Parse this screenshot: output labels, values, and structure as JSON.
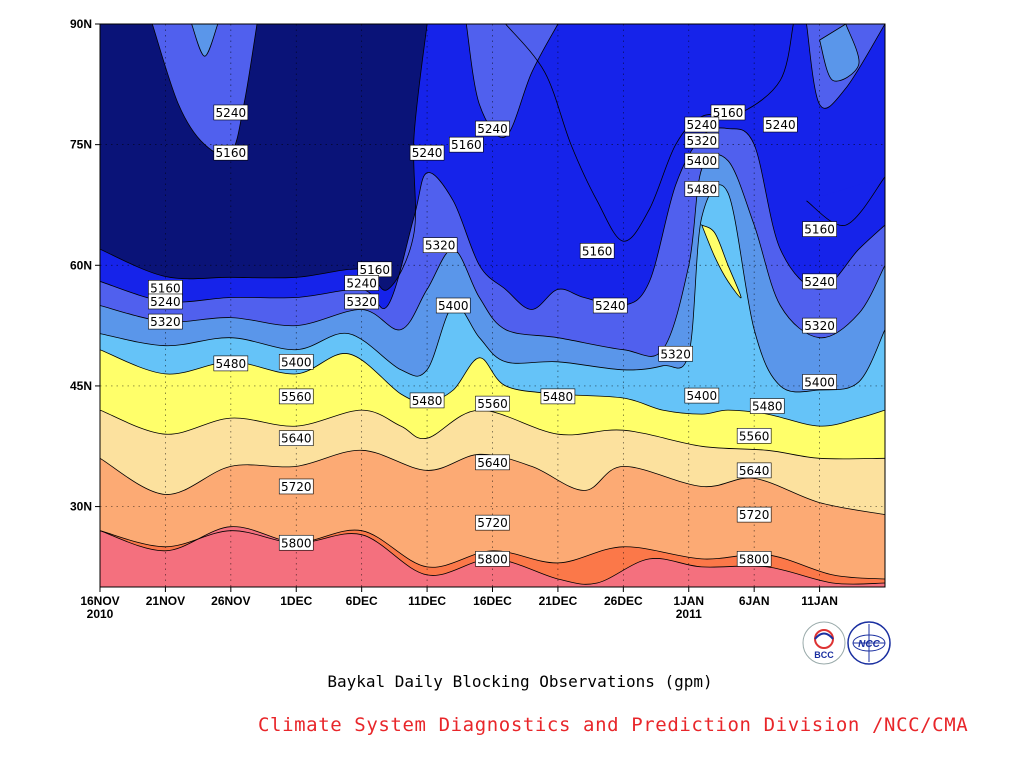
{
  "chart_data": {
    "type": "heatmap",
    "subtype": "filled-contour",
    "x_tick_labels": [
      {
        "day": "16NOV",
        "year": "2010"
      },
      {
        "day": "21NOV",
        "year": ""
      },
      {
        "day": "26NOV",
        "year": ""
      },
      {
        "day": "1DEC",
        "year": ""
      },
      {
        "day": "6DEC",
        "year": ""
      },
      {
        "day": "11DEC",
        "year": ""
      },
      {
        "day": "16DEC",
        "year": ""
      },
      {
        "day": "21DEC",
        "year": ""
      },
      {
        "day": "26DEC",
        "year": ""
      },
      {
        "day": "1JAN",
        "year": "2011"
      },
      {
        "day": "6JAN",
        "year": ""
      },
      {
        "day": "11JAN",
        "year": ""
      }
    ],
    "x_start": "2010-11-16",
    "x_end": "2011-01-15",
    "y_tick_labels": [
      "90N",
      "75N",
      "60N",
      "45N",
      "30N"
    ],
    "ylim": [
      20,
      90
    ],
    "grid": true,
    "contour_levels": [
      5160,
      5240,
      5320,
      5400,
      5480,
      5560,
      5640,
      5720,
      5800
    ],
    "fill_colors": [
      "#0a1378",
      "#1623ea",
      "#5060ee",
      "#5a96ea",
      "#65c3f8",
      "#ffff6a",
      "#fce19e",
      "#fcaa74",
      "#fb7849",
      "#f4707e"
    ],
    "contour_lines": [
      {
        "level": 5160,
        "points": [
          [
            "2010-11-16",
            62
          ],
          [
            "2010-11-21",
            58.6
          ],
          [
            "2010-11-26",
            58.5
          ],
          [
            "2010-12-01",
            58.5
          ],
          [
            "2010-12-06",
            59.5
          ],
          [
            "2010-12-08",
            57
          ],
          [
            "2010-12-10",
            64
          ],
          [
            "2010-12-10",
            76
          ],
          [
            "2010-12-11",
            90
          ]
        ]
      },
      {
        "level": 5160,
        "points": [
          [
            "2010-12-17",
            90
          ],
          [
            "2010-12-20",
            84
          ],
          [
            "2010-12-22",
            75
          ],
          [
            "2010-12-24",
            68
          ],
          [
            "2010-12-26",
            63
          ],
          [
            "2010-12-28",
            67
          ],
          [
            "2010-12-30",
            75
          ],
          [
            "2011-01-01",
            78.5
          ],
          [
            "2011-01-04",
            79
          ],
          [
            "2011-01-07",
            83
          ],
          [
            "2011-01-08",
            90
          ]
        ]
      },
      {
        "level": 5160,
        "points": [
          [
            "2011-01-09",
            68
          ],
          [
            "2011-01-12",
            65
          ],
          [
            "2011-01-15",
            71
          ]
        ]
      },
      {
        "level": 5240,
        "points": [
          [
            "2010-11-16",
            58
          ],
          [
            "2010-11-21",
            55.5
          ],
          [
            "2010-11-26",
            56
          ],
          [
            "2010-12-01",
            56
          ],
          [
            "2010-12-06",
            57
          ],
          [
            "2010-12-08",
            55
          ],
          [
            "2010-12-10",
            66
          ],
          [
            "2010-12-11",
            71.5
          ],
          [
            "2010-12-13",
            68
          ],
          [
            "2010-12-15",
            60
          ],
          [
            "2010-12-17",
            57
          ],
          [
            "2010-12-19",
            54.5
          ],
          [
            "2010-12-21",
            57
          ],
          [
            "2010-12-23",
            56
          ],
          [
            "2010-12-26",
            55
          ],
          [
            "2010-12-28",
            58
          ],
          [
            "2010-12-30",
            70
          ],
          [
            "2011-01-01",
            76
          ],
          [
            "2011-01-03",
            77
          ],
          [
            "2011-01-05",
            75
          ],
          [
            "2011-01-07",
            62
          ],
          [
            "2011-01-10",
            57
          ],
          [
            "2011-01-13",
            62
          ],
          [
            "2011-01-15",
            65
          ]
        ]
      },
      {
        "level": 5320,
        "points": [
          [
            "2010-11-16",
            55
          ],
          [
            "2010-11-21",
            53
          ],
          [
            "2010-11-26",
            53.5
          ],
          [
            "2010-12-01",
            52.5
          ],
          [
            "2010-12-06",
            54.5
          ],
          [
            "2010-12-09",
            52
          ],
          [
            "2010-12-11",
            57
          ],
          [
            "2010-12-13",
            62
          ],
          [
            "2010-12-15",
            56
          ],
          [
            "2010-12-17",
            52
          ],
          [
            "2010-12-21",
            51
          ],
          [
            "2010-12-26",
            49.5
          ],
          [
            "2010-12-29",
            49.5
          ],
          [
            "2010-12-31",
            60
          ],
          [
            "2011-01-01",
            72
          ],
          [
            "2011-01-03",
            73
          ],
          [
            "2011-01-05",
            65
          ],
          [
            "2011-01-07",
            55
          ],
          [
            "2011-01-10",
            51
          ],
          [
            "2011-01-13",
            54
          ],
          [
            "2011-01-15",
            60
          ]
        ]
      },
      {
        "level": 5400,
        "points": [
          [
            "2010-11-16",
            51.5
          ],
          [
            "2010-11-21",
            50
          ],
          [
            "2010-11-26",
            51
          ],
          [
            "2010-12-01",
            49.5
          ],
          [
            "2010-12-05",
            51.5
          ],
          [
            "2010-12-09",
            47
          ],
          [
            "2010-12-11",
            47
          ],
          [
            "2010-12-13",
            55
          ],
          [
            "2010-12-15",
            51
          ],
          [
            "2010-12-17",
            48
          ],
          [
            "2010-12-21",
            48
          ],
          [
            "2010-12-26",
            47
          ],
          [
            "2010-12-29",
            47.5
          ],
          [
            "2010-12-31",
            49
          ],
          [
            "2011-01-01",
            66
          ],
          [
            "2011-01-03",
            69
          ],
          [
            "2011-01-05",
            52
          ],
          [
            "2011-01-07",
            45
          ],
          [
            "2011-01-10",
            44.5
          ],
          [
            "2011-01-13",
            45.5
          ],
          [
            "2011-01-15",
            52
          ]
        ]
      },
      {
        "level": 5480,
        "points": [
          [
            "2010-11-16",
            49.5
          ],
          [
            "2010-11-21",
            46.5
          ],
          [
            "2010-11-26",
            48
          ],
          [
            "2010-12-01",
            46.5
          ],
          [
            "2010-12-05",
            49
          ],
          [
            "2010-12-09",
            44
          ],
          [
            "2010-12-11",
            43
          ],
          [
            "2010-12-13",
            44.5
          ],
          [
            "2010-12-15",
            48.5
          ],
          [
            "2010-12-17",
            45
          ],
          [
            "2010-12-21",
            44
          ],
          [
            "2010-12-26",
            43.5
          ],
          [
            "2010-12-29",
            42
          ],
          [
            "2011-01-01",
            41.5
          ],
          [
            "2011-01-03",
            42
          ],
          [
            "2011-01-06",
            41.5
          ],
          [
            "2011-01-10",
            40
          ],
          [
            "2011-01-13",
            41
          ],
          [
            "2011-01-15",
            42
          ]
        ]
      },
      {
        "level": 5560,
        "points": [
          [
            "2010-11-16",
            42
          ],
          [
            "2010-11-21",
            39
          ],
          [
            "2010-11-26",
            41
          ],
          [
            "2010-12-01",
            40
          ],
          [
            "2010-12-06",
            42
          ],
          [
            "2010-12-09",
            40
          ],
          [
            "2010-12-11",
            38.5
          ],
          [
            "2010-12-15",
            42
          ],
          [
            "2010-12-21",
            39
          ],
          [
            "2010-12-26",
            39.5
          ],
          [
            "2011-01-01",
            37.5
          ],
          [
            "2011-01-06",
            37
          ],
          [
            "2011-01-10",
            36
          ],
          [
            "2011-01-15",
            36
          ]
        ]
      },
      {
        "level": 5640,
        "points": [
          [
            "2010-11-16",
            36
          ],
          [
            "2010-11-21",
            31.5
          ],
          [
            "2010-11-26",
            35
          ],
          [
            "2010-12-01",
            35
          ],
          [
            "2010-12-06",
            37
          ],
          [
            "2010-12-11",
            34.5
          ],
          [
            "2010-12-15",
            36.5
          ],
          [
            "2010-12-19",
            35
          ],
          [
            "2010-12-23",
            32
          ],
          [
            "2010-12-26",
            35
          ],
          [
            "2011-01-01",
            32.5
          ],
          [
            "2011-01-05",
            33.5
          ],
          [
            "2011-01-10",
            30.5
          ],
          [
            "2011-01-15",
            29
          ]
        ]
      },
      {
        "level": 5720,
        "points": [
          [
            "2010-11-16",
            27
          ],
          [
            "2010-11-21",
            25
          ],
          [
            "2010-11-26",
            27
          ],
          [
            "2010-12-01",
            25.5
          ],
          [
            "2010-12-06",
            27
          ],
          [
            "2010-12-11",
            22.5
          ],
          [
            "2010-12-16",
            24.5
          ],
          [
            "2010-12-21",
            23
          ],
          [
            "2010-12-26",
            25
          ],
          [
            "2011-01-01",
            23.5
          ],
          [
            "2011-01-06",
            24
          ],
          [
            "2011-01-11",
            21.5
          ],
          [
            "2011-01-15",
            21
          ]
        ]
      },
      {
        "level": 5800,
        "points": [
          [
            "2010-11-16",
            27
          ],
          [
            "2010-11-21",
            24.5
          ],
          [
            "2010-11-26",
            27.5
          ],
          [
            "2010-12-01",
            25.5
          ],
          [
            "2010-12-06",
            26.5
          ],
          [
            "2010-12-11",
            21.5
          ],
          [
            "2010-12-16",
            23.5
          ],
          [
            "2010-12-21",
            21
          ],
          [
            "2010-12-24",
            20.5
          ],
          [
            "2010-12-28",
            23.5
          ],
          [
            "2011-01-01",
            22.5
          ],
          [
            "2011-01-06",
            22.5
          ],
          [
            "2011-01-11",
            20.5
          ],
          [
            "2011-01-15",
            20.5
          ]
        ]
      }
    ],
    "closed_contours": [
      {
        "level": 5240,
        "points": [
          [
            "2010-11-20",
            90
          ],
          [
            "2010-11-22",
            80
          ],
          [
            "2010-11-24",
            75
          ],
          [
            "2010-11-26",
            74
          ],
          [
            "2010-11-27",
            80
          ],
          [
            "2010-11-28",
            90
          ]
        ]
      },
      {
        "level": 5320,
        "points": [
          [
            "2010-11-23",
            90
          ],
          [
            "2010-11-24",
            86
          ],
          [
            "2010-11-25",
            90
          ]
        ]
      },
      {
        "level": 5240,
        "points": [
          [
            "2010-12-14",
            90
          ],
          [
            "2010-12-15",
            80
          ],
          [
            "2010-12-17",
            76
          ],
          [
            "2010-12-19",
            84
          ],
          [
            "2010-12-21",
            90
          ]
        ]
      },
      {
        "level": 5240,
        "points": [
          [
            "2011-01-09",
            90
          ],
          [
            "2011-01-10",
            80
          ],
          [
            "2011-01-12",
            82
          ],
          [
            "2011-01-15",
            90
          ]
        ]
      },
      {
        "level": 5320,
        "points": [
          [
            "2011-01-10",
            88
          ],
          [
            "2011-01-11",
            83
          ],
          [
            "2011-01-13",
            85
          ],
          [
            "2011-01-12",
            90
          ]
        ]
      },
      {
        "level": 5480,
        "points": [
          [
            "2011-01-01",
            65
          ],
          [
            "2011-01-02",
            64
          ],
          [
            "2011-01-03",
            60
          ],
          [
            "2011-01-04",
            56
          ],
          [
            "2011-01-03",
            58
          ],
          [
            "2011-01-02",
            61
          ],
          [
            "2011-01-01",
            65
          ]
        ]
      }
    ],
    "contour_labels": [
      {
        "text": "5240",
        "x": "2010-11-26",
        "y": 79
      },
      {
        "text": "5160",
        "x": "2010-11-26",
        "y": 74
      },
      {
        "text": "5240",
        "x": "2010-12-11",
        "y": 74
      },
      {
        "text": "5160",
        "x": "2010-12-14",
        "y": 75
      },
      {
        "text": "5240",
        "x": "2010-12-16",
        "y": 77
      },
      {
        "text": "5160",
        "x": "2010-11-21",
        "y": 57.2
      },
      {
        "text": "5240",
        "x": "2010-11-21",
        "y": 55.5
      },
      {
        "text": "5320",
        "x": "2010-11-21",
        "y": 53
      },
      {
        "text": "5160",
        "x": "2010-12-07",
        "y": 59.5
      },
      {
        "text": "5240",
        "x": "2010-12-06",
        "y": 57.8
      },
      {
        "text": "5320",
        "x": "2010-12-06",
        "y": 55.5
      },
      {
        "text": "5320",
        "x": "2010-12-12",
        "y": 62.5
      },
      {
        "text": "5400",
        "x": "2010-12-13",
        "y": 55
      },
      {
        "text": "5160",
        "x": "2010-12-24",
        "y": 61.8
      },
      {
        "text": "5240",
        "x": "2010-12-25",
        "y": 55
      },
      {
        "text": "5480",
        "x": "2010-11-26",
        "y": 47.8
      },
      {
        "text": "5400",
        "x": "2010-12-01",
        "y": 48
      },
      {
        "text": "5560",
        "x": "2010-12-01",
        "y": 43.7
      },
      {
        "text": "5480",
        "x": "2010-12-11",
        "y": 43.2
      },
      {
        "text": "5560",
        "x": "2010-12-16",
        "y": 42.8
      },
      {
        "text": "5480",
        "x": "2010-12-21",
        "y": 43.7
      },
      {
        "text": "5320",
        "x": "2010-12-30",
        "y": 49
      },
      {
        "text": "5400",
        "x": "2011-01-01",
        "y": 43.8
      },
      {
        "text": "5640",
        "x": "2010-12-01",
        "y": 38.5
      },
      {
        "text": "5640",
        "x": "2010-12-16",
        "y": 35.5
      },
      {
        "text": "5720",
        "x": "2010-12-01",
        "y": 32.5
      },
      {
        "text": "5720",
        "x": "2010-12-16",
        "y": 28
      },
      {
        "text": "5800",
        "x": "2010-12-01",
        "y": 25.5
      },
      {
        "text": "5800",
        "x": "2010-12-16",
        "y": 23.5
      },
      {
        "text": "5160",
        "x": "2011-01-03",
        "y": 79
      },
      {
        "text": "5240",
        "x": "2011-01-01",
        "y": 77.5
      },
      {
        "text": "5320",
        "x": "2011-01-01",
        "y": 75.5
      },
      {
        "text": "5400",
        "x": "2011-01-01",
        "y": 73
      },
      {
        "text": "5480",
        "x": "2011-01-01",
        "y": 69.5
      },
      {
        "text": "5240",
        "x": "2011-01-07",
        "y": 77.5
      },
      {
        "text": "5160",
        "x": "2011-01-10",
        "y": 64.5
      },
      {
        "text": "5240",
        "x": "2011-01-10",
        "y": 58
      },
      {
        "text": "5320",
        "x": "2011-01-10",
        "y": 52.5
      },
      {
        "text": "5400",
        "x": "2011-01-10",
        "y": 45.5
      },
      {
        "text": "5480",
        "x": "2011-01-06",
        "y": 42.5
      },
      {
        "text": "5560",
        "x": "2011-01-05",
        "y": 38.8
      },
      {
        "text": "5640",
        "x": "2011-01-05",
        "y": 34.5
      },
      {
        "text": "5720",
        "x": "2011-01-05",
        "y": 29
      },
      {
        "text": "5800",
        "x": "2011-01-05",
        "y": 23.5
      }
    ]
  },
  "caption": "Baykal Daily Blocking Observations (gpm)",
  "credit": "Climate System Diagnostics and Prediction Division /NCC/CMA",
  "logos": [
    {
      "name": "BCC",
      "text": "BCC",
      "color": "#1a2fa0"
    },
    {
      "name": "NCC",
      "text": "NCC",
      "color": "#1a2fa0"
    }
  ]
}
